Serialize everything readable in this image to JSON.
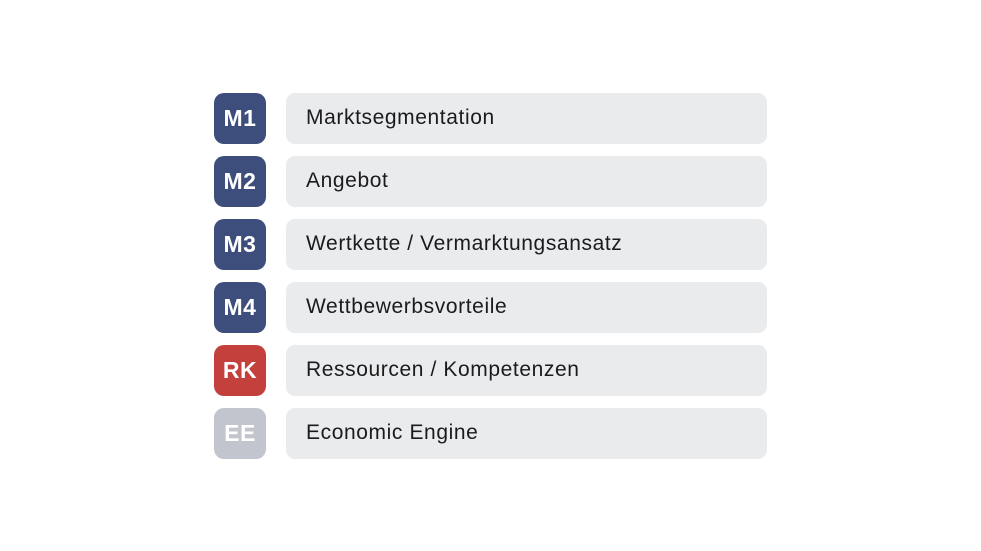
{
  "colors": {
    "blue_badge": "#3e4e7c",
    "red_badge": "#c4403c",
    "gray_badge": "#c2c5cd",
    "bar_background": "#eaebed",
    "label_text": "#1b1b1b",
    "badge_text": "#ffffff",
    "page_background": "#ffffff"
  },
  "items": [
    {
      "code": "M1",
      "label": "Marktsegmentation",
      "badge_color": "#3e4e7c"
    },
    {
      "code": "M2",
      "label": "Angebot",
      "badge_color": "#3e4e7c"
    },
    {
      "code": "M3",
      "label": "Wertkette / Vermarktungsansatz",
      "badge_color": "#3e4e7c"
    },
    {
      "code": "M4",
      "label": "Wettbewerbsvorteile",
      "badge_color": "#3e4e7c"
    },
    {
      "code": "RK",
      "label": "Ressourcen / Kompetenzen",
      "badge_color": "#c4403c"
    },
    {
      "code": "EE",
      "label": "Economic Engine",
      "badge_color": "#c2c5cd"
    }
  ]
}
